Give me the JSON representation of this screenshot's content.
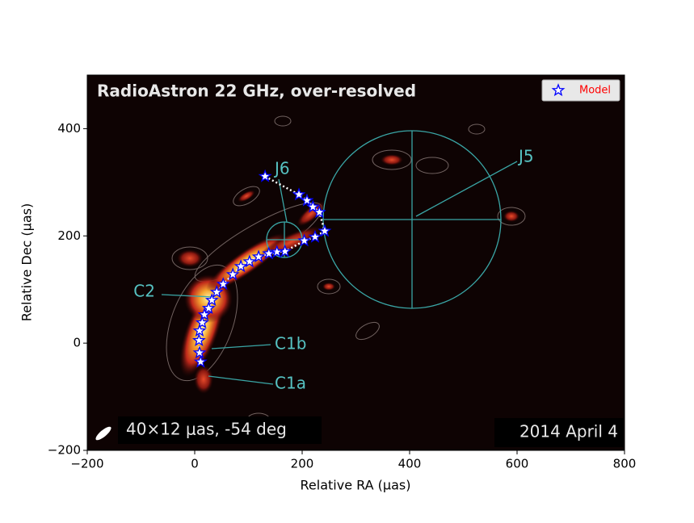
{
  "chart_data": {
    "type": "scatter",
    "title": "RadioAstron 22 GHz, over-resolved",
    "x_label": "Relative RA (μas)",
    "y_label": "Relative Dec (μas)",
    "xlim": [
      -200,
      800
    ],
    "ylim": [
      -200,
      500
    ],
    "xticks": [
      {
        "value": -200,
        "label": "−200"
      },
      0,
      200,
      400,
      600,
      800
    ],
    "yticks": [
      {
        "value": -200,
        "label": "−200"
      },
      0,
      200,
      400
    ],
    "legend_position": "upper right",
    "series": [
      {
        "name": "Model",
        "color": "#0000ff",
        "x": [
          131,
          194,
          209,
          220,
          232,
          242,
          224,
          204,
          168,
          153,
          138,
          119,
          102,
          86,
          71,
          53,
          41,
          32,
          26,
          18,
          14,
          9,
          8,
          9,
          11
        ],
        "values": [
          311,
          277,
          266,
          254,
          244,
          209,
          198,
          191,
          171,
          170,
          167,
          161,
          152,
          143,
          128,
          110,
          95,
          80,
          65,
          53,
          38,
          23,
          5,
          -18,
          -35
        ]
      }
    ],
    "annotations": [
      "J6",
      "J5",
      "C2",
      "C1b",
      "C1a"
    ],
    "beam_label": "40×12 μas, -54 deg",
    "date_label": "2014 April 4"
  }
}
